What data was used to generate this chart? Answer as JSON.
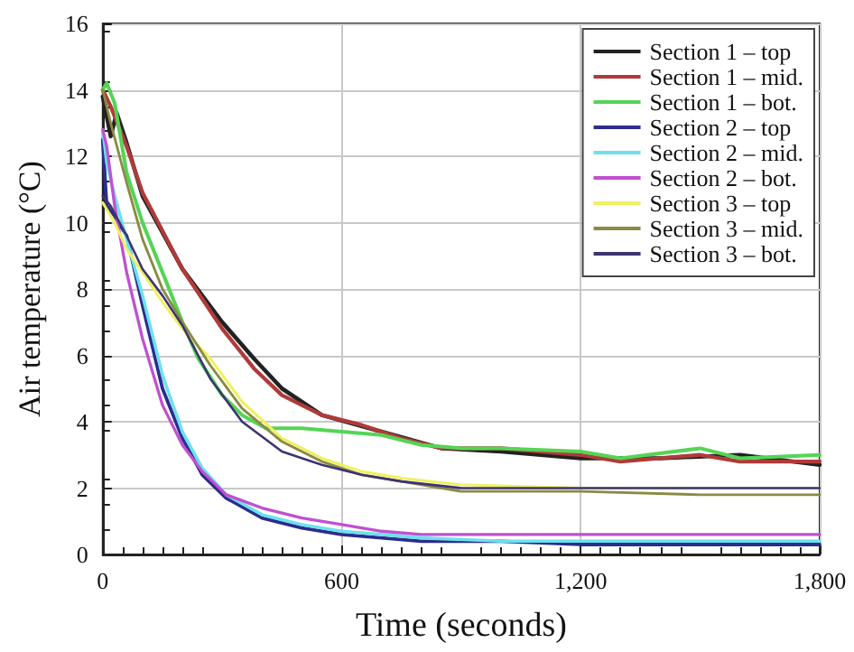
{
  "chart_data": {
    "type": "line",
    "xlabel": "Time (seconds)",
    "ylabel": "Air temperature (°C)",
    "xlim": [
      0,
      1800
    ],
    "ylim": [
      0,
      16
    ],
    "xticks": [
      0,
      600,
      {
        "value": 1200,
        "label": "1,200"
      },
      {
        "value": 1800,
        "label": "1,800"
      }
    ],
    "yticks": [
      0,
      2,
      4,
      6,
      8,
      10,
      12,
      14,
      16
    ],
    "grid": true,
    "legend": "top right",
    "marker": "none",
    "line_style": "solid",
    "series": [
      {
        "name": "Section 1 – top",
        "color": "#222222",
        "x": [
          0,
          20,
          35,
          60,
          100,
          200,
          300,
          380,
          450,
          550,
          700,
          850,
          1000,
          1200,
          1400,
          1600,
          1800
        ],
        "values": [
          13.8,
          12.6,
          13.3,
          12.4,
          10.8,
          8.6,
          7.0,
          5.9,
          5.0,
          4.2,
          3.7,
          3.2,
          3.1,
          2.9,
          2.9,
          3.0,
          2.7
        ]
      },
      {
        "name": "Section 1 – mid.",
        "color": "#b03a3a",
        "x": [
          0,
          20,
          60,
          100,
          200,
          300,
          380,
          450,
          550,
          650,
          750,
          850,
          1000,
          1200,
          1300,
          1400,
          1500,
          1600,
          1800
        ],
        "values": [
          14.0,
          13.5,
          12.3,
          10.9,
          8.6,
          6.8,
          5.6,
          4.8,
          4.2,
          3.9,
          3.5,
          3.2,
          3.2,
          3.0,
          2.8,
          2.9,
          3.0,
          2.8,
          2.8
        ]
      },
      {
        "name": "Section 1 – bot.",
        "color": "#55d455",
        "x": [
          0,
          10,
          30,
          60,
          100,
          150,
          200,
          240,
          300,
          350,
          410,
          500,
          600,
          700,
          800,
          900,
          1000,
          1200,
          1300,
          1500,
          1600,
          1800
        ],
        "values": [
          14.0,
          14.2,
          13.6,
          11.5,
          10.0,
          8.5,
          7.0,
          5.9,
          4.8,
          4.2,
          3.8,
          3.8,
          3.7,
          3.6,
          3.3,
          3.2,
          3.2,
          3.1,
          2.9,
          3.2,
          2.9,
          3.0
        ]
      },
      {
        "name": "Section 2 – top",
        "color": "#2c2c8c",
        "x": [
          0,
          10,
          30,
          60,
          100,
          150,
          200,
          250,
          310,
          400,
          500,
          600,
          800,
          1000,
          1200,
          1500,
          1800
        ],
        "values": [
          12.5,
          10.5,
          10.2,
          9.6,
          7.5,
          5.0,
          3.5,
          2.4,
          1.7,
          1.1,
          0.8,
          0.6,
          0.4,
          0.4,
          0.3,
          0.3,
          0.3
        ]
      },
      {
        "name": "Section 2 – mid.",
        "color": "#6de0ee",
        "x": [
          0,
          10,
          30,
          60,
          100,
          150,
          200,
          250,
          310,
          400,
          500,
          600,
          800,
          1000,
          1200,
          1500,
          1800
        ],
        "values": [
          12.8,
          11.8,
          10.8,
          9.5,
          7.8,
          5.4,
          3.7,
          2.6,
          1.8,
          1.2,
          0.9,
          0.7,
          0.5,
          0.4,
          0.4,
          0.4,
          0.4
        ]
      },
      {
        "name": "Section 2 – bot.",
        "color": "#c050d0",
        "x": [
          0,
          10,
          30,
          60,
          100,
          150,
          200,
          250,
          310,
          400,
          500,
          600,
          700,
          800,
          1000,
          1200,
          1500,
          1800
        ],
        "values": [
          12.8,
          12.3,
          10.5,
          8.5,
          6.5,
          4.5,
          3.3,
          2.5,
          1.8,
          1.4,
          1.1,
          0.9,
          0.7,
          0.6,
          0.6,
          0.6,
          0.6,
          0.6
        ]
      },
      {
        "name": "Section 3 – top",
        "color": "#f0f060",
        "x": [
          0,
          30,
          60,
          100,
          150,
          200,
          270,
          350,
          450,
          550,
          650,
          750,
          900,
          1200,
          1500,
          1800
        ],
        "values": [
          10.6,
          10.0,
          9.2,
          8.5,
          7.6,
          6.8,
          5.9,
          4.6,
          3.5,
          2.9,
          2.5,
          2.3,
          2.1,
          2.0,
          2.0,
          2.0
        ]
      },
      {
        "name": "Section 3 – mid.",
        "color": "#8a8a44",
        "x": [
          0,
          20,
          60,
          100,
          150,
          200,
          270,
          350,
          450,
          550,
          650,
          750,
          900,
          1200,
          1500,
          1800
        ],
        "values": [
          14.0,
          13.0,
          11.2,
          9.5,
          8.0,
          7.0,
          5.7,
          4.4,
          3.4,
          2.8,
          2.4,
          2.2,
          1.9,
          1.9,
          1.8,
          1.8
        ]
      },
      {
        "name": "Section 3 – bot.",
        "color": "#3c3470",
        "x": [
          0,
          20,
          60,
          100,
          150,
          200,
          270,
          350,
          450,
          550,
          650,
          750,
          900,
          1200,
          1500,
          1800
        ],
        "values": [
          10.8,
          10.5,
          9.6,
          8.6,
          7.8,
          6.9,
          5.3,
          4.0,
          3.1,
          2.7,
          2.4,
          2.2,
          2.0,
          2.0,
          2.0,
          2.0
        ]
      }
    ]
  }
}
